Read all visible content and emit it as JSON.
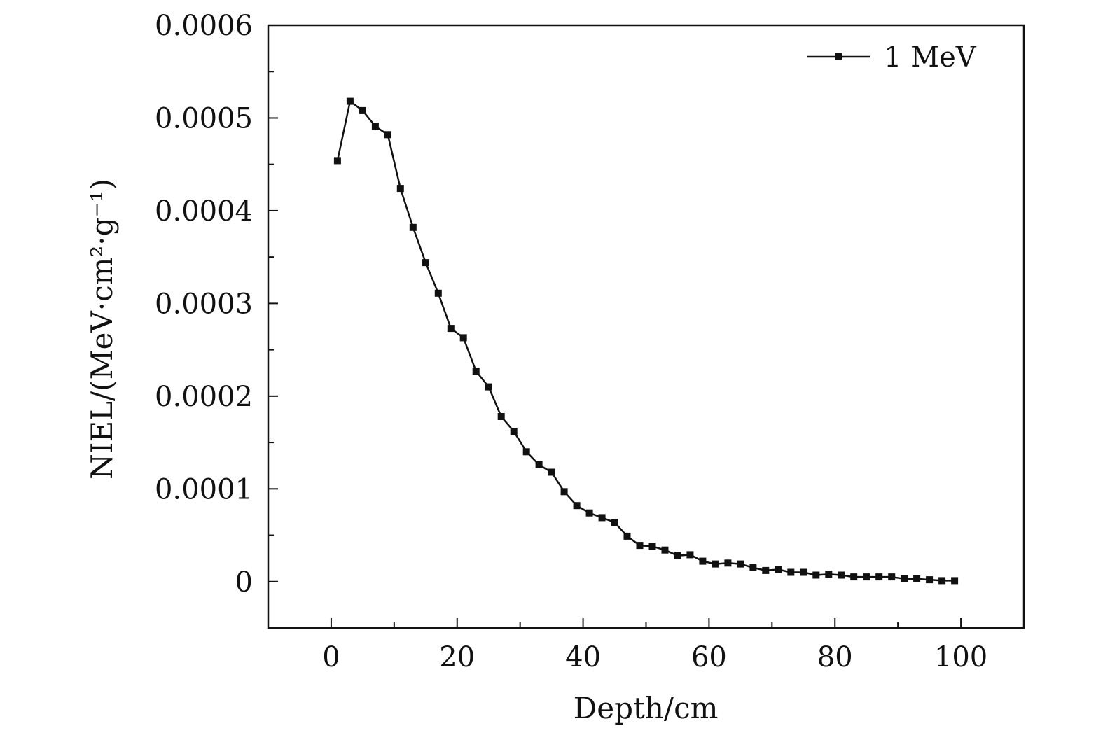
{
  "chart_data": {
    "type": "line",
    "title": "",
    "xlabel": "Depth/cm",
    "ylabel": "NIEL/(MeV·cm²·g⁻¹)",
    "xlim": [
      -10,
      110
    ],
    "ylim": [
      -5e-05,
      0.0006
    ],
    "x_ticks": [
      0,
      20,
      40,
      60,
      80,
      100
    ],
    "x_tick_labels": [
      "0",
      "20",
      "40",
      "60",
      "80",
      "100"
    ],
    "y_ticks": [
      0,
      0.0001,
      0.0002,
      0.0003,
      0.0004,
      0.0005,
      0.0006
    ],
    "y_tick_labels": [
      "0",
      "0.0001",
      "0.0002",
      "0.0003",
      "0.0004",
      "0.0005",
      "0.0006"
    ],
    "grid": false,
    "legend_position": "top-right",
    "colors": {
      "series": "#111111",
      "axes": "#111111"
    },
    "series": [
      {
        "name": "1 MeV",
        "marker": "square",
        "x": [
          1,
          3,
          5,
          7,
          9,
          11,
          13,
          15,
          17,
          19,
          21,
          23,
          25,
          27,
          29,
          31,
          33,
          35,
          37,
          39,
          41,
          43,
          45,
          47,
          49,
          51,
          53,
          55,
          57,
          59,
          61,
          63,
          65,
          67,
          69,
          71,
          73,
          75,
          77,
          79,
          81,
          83,
          85,
          87,
          89,
          91,
          93,
          95,
          97,
          99
        ],
        "y": [
          0.000454,
          0.000518,
          0.000508,
          0.000491,
          0.000482,
          0.000424,
          0.000382,
          0.000344,
          0.000311,
          0.000273,
          0.000263,
          0.000227,
          0.00021,
          0.000178,
          0.000162,
          0.00014,
          0.000126,
          0.000118,
          9.7e-05,
          8.2e-05,
          7.4e-05,
          6.9e-05,
          6.4e-05,
          4.9e-05,
          3.9e-05,
          3.8e-05,
          3.4e-05,
          2.8e-05,
          2.9e-05,
          2.2e-05,
          1.9e-05,
          2e-05,
          1.9e-05,
          1.5e-05,
          1.2e-05,
          1.3e-05,
          1e-05,
          1e-05,
          7e-06,
          8e-06,
          7e-06,
          5e-06,
          5e-06,
          5e-06,
          5e-06,
          3e-06,
          3e-06,
          2e-06,
          1e-06,
          1e-06
        ]
      }
    ]
  }
}
